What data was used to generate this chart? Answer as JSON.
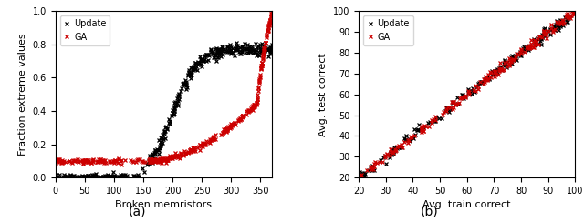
{
  "subplot_a": {
    "xlabel": "Broken memristors",
    "ylabel": "Fraction extreme values",
    "xlim": [
      0,
      370
    ],
    "ylim": [
      0.0,
      1.0
    ],
    "xticks": [
      0,
      50,
      100,
      150,
      200,
      250,
      300,
      350
    ],
    "yticks": [
      0.0,
      0.2,
      0.4,
      0.6,
      0.8,
      1.0
    ],
    "update_color": "#000000",
    "ga_color": "#cc0000",
    "marker": "x",
    "markersize": 2.5,
    "legend_labels": [
      "Update",
      "GA"
    ],
    "label_text": "(a)"
  },
  "subplot_b": {
    "xlabel": "Avg. train correct",
    "ylabel": "Avg. test correct",
    "xlim": [
      20,
      100
    ],
    "ylim": [
      20,
      100
    ],
    "xticks": [
      20,
      30,
      40,
      50,
      60,
      70,
      80,
      90,
      100
    ],
    "yticks": [
      20,
      30,
      40,
      50,
      60,
      70,
      80,
      90,
      100
    ],
    "update_color": "#000000",
    "ga_color": "#cc0000",
    "marker": "x",
    "markersize": 2.5,
    "legend_labels": [
      "Update",
      "GA"
    ],
    "label_text": "(b)"
  }
}
